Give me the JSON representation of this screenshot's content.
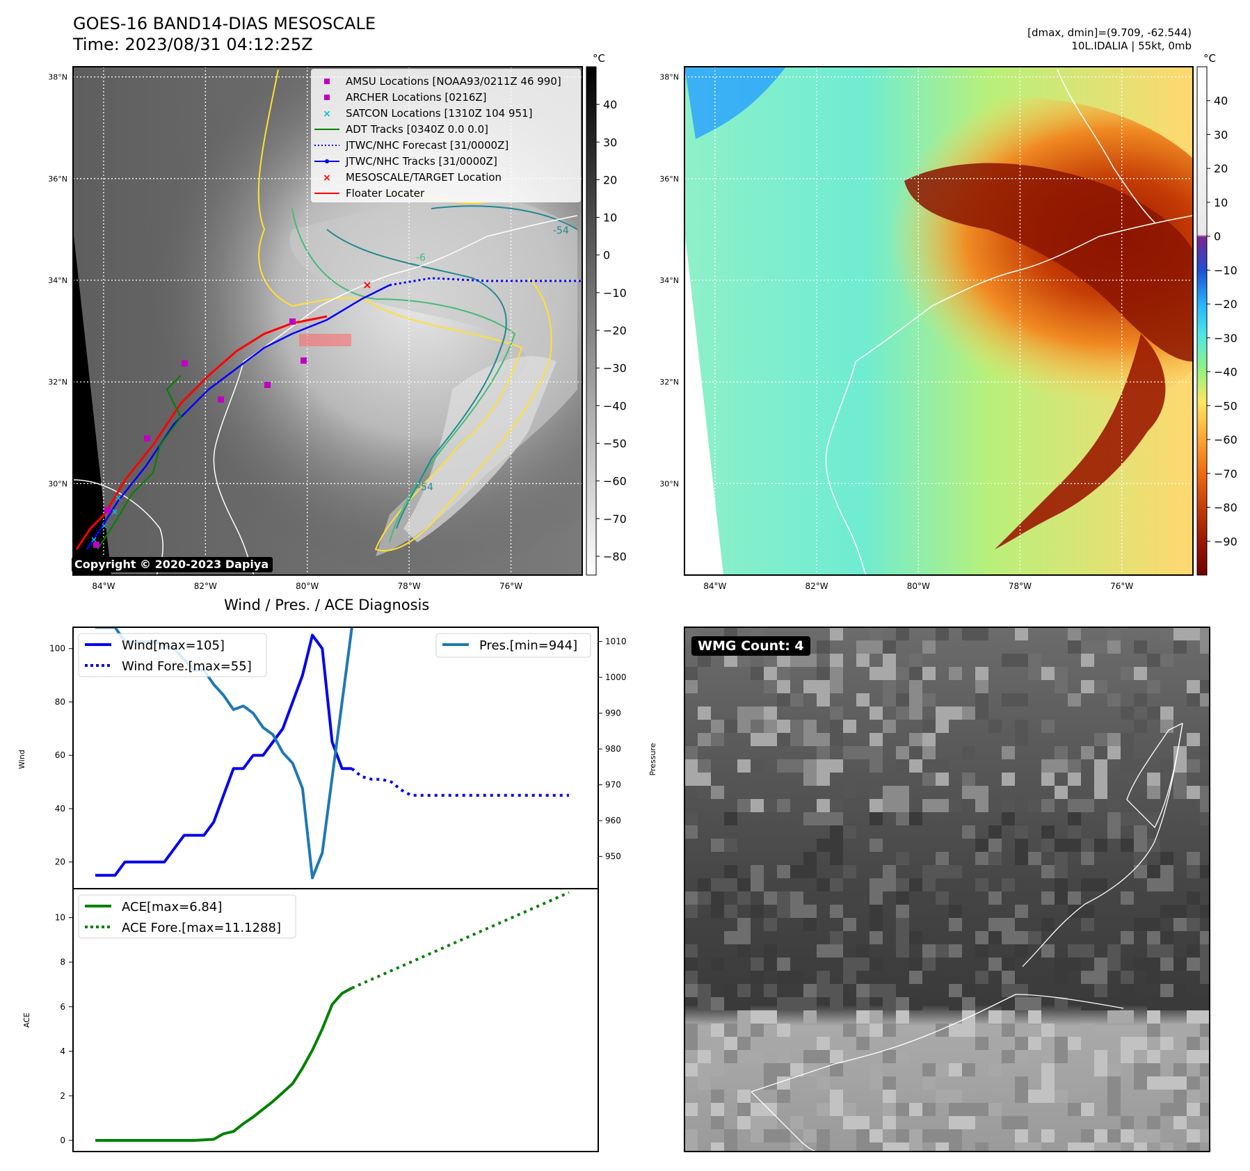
{
  "header": {
    "title_line1": "GOES-16 BAND14-DIAS MESOSCALE",
    "title_line2": "Time: 2023/08/31 04:12:25Z",
    "info_line1": "[dmax, dmin]=(9.709, -62.544)",
    "info_line2": "10L.IDALIA | 55kt, 0mb"
  },
  "map_axes": {
    "lat_ticks": [
      "38°N",
      "36°N",
      "34°N",
      "32°N",
      "30°N"
    ],
    "lon_ticks": [
      "84°W",
      "82°W",
      "80°W",
      "78°W",
      "76°W"
    ],
    "lat_range": [
      28.2,
      38.2
    ],
    "lon_range": [
      -84.6,
      -74.6
    ]
  },
  "ir_panel": {
    "colorbar_unit": "°C",
    "colorbar_ticks": [
      "40",
      "30",
      "20",
      "10",
      "0",
      "−10",
      "−20",
      "−30",
      "−40",
      "−50",
      "−60",
      "−70",
      "−80"
    ],
    "colorbar_range": [
      -85,
      50
    ],
    "copyright": "Copyright © 2020-2023 Dapiya",
    "contour_labels": [
      "-54",
      "-6",
      "-54"
    ],
    "legend": [
      {
        "label": "AMSU Locations [NOAA93/0211Z 46 990]",
        "marker": "square",
        "color": "#c000c0"
      },
      {
        "label": "ARCHER Locations [0216Z]",
        "marker": "square",
        "color": "#c000c0"
      },
      {
        "label": "SATCON Locations [1310Z 104 951]",
        "marker": "x",
        "color": "#17becf"
      },
      {
        "label": "ADT Tracks [0340Z 0.0 0.0]",
        "marker": "line",
        "color": "#008000"
      },
      {
        "label": "JTWC/NHC Forecast [31/0000Z]",
        "marker": "dotted",
        "color": "#0000ff"
      },
      {
        "label": "JTWC/NHC Tracks [31/0000Z]",
        "marker": "line-dot",
        "color": "#0000ff"
      },
      {
        "label": "MESOSCALE/TARGET Location",
        "marker": "x",
        "color": "#ff0000"
      },
      {
        "label": "Floater Locater",
        "marker": "line",
        "color": "#ff0000"
      }
    ]
  },
  "enhanced_panel": {
    "colorbar_unit": "°C",
    "colorbar_ticks": [
      "40",
      "30",
      "20",
      "10",
      "0",
      "−10",
      "−20",
      "−30",
      "−40",
      "−50",
      "−60",
      "−70",
      "−80",
      "−90"
    ],
    "colorbar_range": [
      -100,
      50
    ]
  },
  "diagnosis": {
    "title": "Wind / Pres. / ACE Diagnosis",
    "wind_ylabel": "Wind",
    "pres_ylabel": "Pressure",
    "ace_ylabel": "ACE",
    "wind_ticks": [
      "100",
      "80",
      "60",
      "40",
      "20"
    ],
    "pres_ticks": [
      "1010",
      "1000",
      "990",
      "980",
      "970",
      "960",
      "950"
    ],
    "ace_ticks": [
      "10",
      "8",
      "6",
      "4",
      "2",
      "0"
    ],
    "legend_wind": "Wind[max=105]",
    "legend_wind_fore": "Wind Fore.[max=55]",
    "legend_pres": "Pres.[min=944]",
    "legend_ace": "ACE[max=6.84]",
    "legend_ace_fore": "ACE Fore.[max=11.1288]"
  },
  "wmg_panel": {
    "label": "WMG Count: 4"
  },
  "colors": {
    "wind": "#0000ee",
    "pressure": "#1f77b4",
    "ace": "#008000",
    "coast": "#ffffff",
    "contour_yellow": "#ffe033",
    "contour_green": "#44bb77",
    "contour_teal": "#22888f"
  },
  "chart_data": [
    {
      "type": "line",
      "title": "Wind / Pres. / ACE Diagnosis",
      "ylabel": "Wind",
      "ylim": [
        10,
        108
      ],
      "series": [
        {
          "name": "Wind[max=105]",
          "x": [
            0,
            1,
            2,
            3,
            4,
            5,
            6,
            7,
            8,
            9,
            10,
            11,
            12,
            13,
            14,
            15,
            16,
            17,
            18,
            19,
            20,
            21,
            22,
            23,
            24,
            25,
            26
          ],
          "values": [
            15,
            15,
            15,
            20,
            20,
            20,
            20,
            20,
            25,
            30,
            30,
            30,
            35,
            45,
            55,
            55,
            60,
            60,
            65,
            70,
            80,
            90,
            105,
            100,
            65,
            55,
            55
          ]
        },
        {
          "name": "Wind Fore.[max=55]",
          "x": [
            26,
            27,
            28,
            29,
            30,
            31,
            32,
            33,
            34,
            35,
            36,
            37,
            38,
            39,
            40,
            41,
            42,
            43,
            44,
            45,
            46,
            47,
            48
          ],
          "values": [
            55,
            52,
            51,
            51,
            50,
            47,
            45,
            45,
            45,
            45,
            45,
            45,
            45,
            45,
            45,
            45,
            45,
            45,
            45,
            45,
            45,
            45,
            45
          ]
        }
      ]
    },
    {
      "type": "line",
      "ylabel": "Pressure",
      "ylim": [
        941,
        1014
      ],
      "series": [
        {
          "name": "Pres.[min=944]",
          "x": [
            0,
            1,
            2,
            3,
            4,
            5,
            6,
            7,
            8,
            9,
            10,
            11,
            12,
            13,
            14,
            15,
            16,
            17,
            18,
            19,
            20,
            21,
            22,
            23,
            24,
            25,
            26
          ],
          "values": [
            1014,
            1014,
            1014,
            1010,
            1010,
            1010,
            1010,
            1009,
            1008,
            1005,
            1002,
            1002,
            998,
            995,
            991,
            992,
            990,
            986,
            984,
            979,
            976,
            969,
            944,
            951,
            972,
            993,
            1014
          ]
        }
      ]
    },
    {
      "type": "line",
      "ylabel": "ACE",
      "ylim": [
        -0.5,
        11.3
      ],
      "series": [
        {
          "name": "ACE[max=6.84]",
          "x": [
            0,
            1,
            2,
            3,
            4,
            5,
            6,
            7,
            8,
            9,
            10,
            11,
            12,
            13,
            14,
            15,
            16,
            17,
            18,
            19,
            20,
            21,
            22,
            23,
            24,
            25,
            26
          ],
          "values": [
            0,
            0,
            0,
            0,
            0,
            0,
            0,
            0,
            0,
            0,
            0,
            0.02,
            0.05,
            0.3,
            0.4,
            0.75,
            1.05,
            1.4,
            1.75,
            2.15,
            2.55,
            3.25,
            4.05,
            5.0,
            6.1,
            6.6,
            6.84
          ]
        },
        {
          "name": "ACE Fore.[max=11.1288]",
          "x": [
            26,
            48
          ],
          "values": [
            6.84,
            11.1288
          ]
        }
      ]
    }
  ]
}
